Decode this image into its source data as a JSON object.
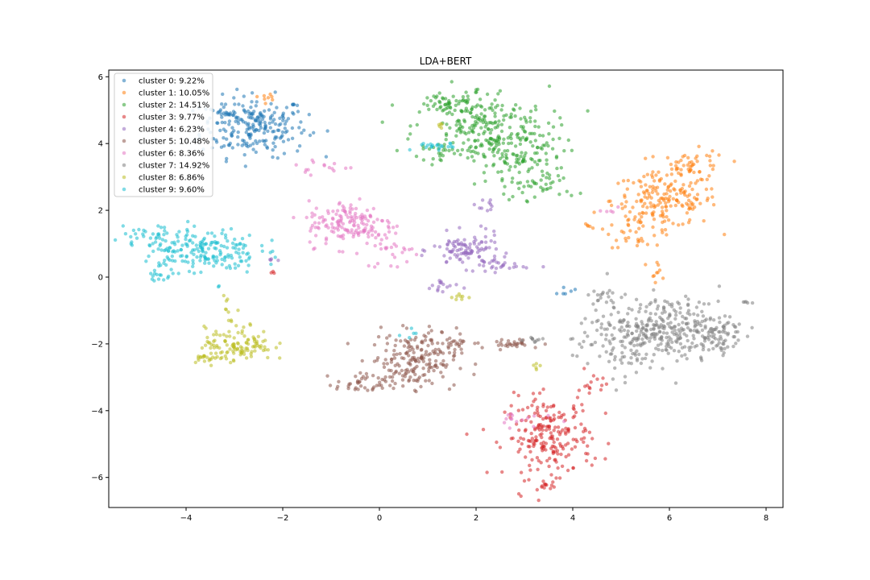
{
  "chart_data": {
    "type": "scatter",
    "title": "LDA+BERT",
    "xlabel": "",
    "ylabel": "",
    "xlim": [
      -5.6,
      8.35
    ],
    "ylim": [
      -6.9,
      6.2
    ],
    "xticks": [
      -4,
      -2,
      0,
      2,
      4,
      6,
      8
    ],
    "xtick_labels": [
      "−4",
      "−2",
      "0",
      "2",
      "4",
      "6",
      "8"
    ],
    "yticks": [
      6,
      4,
      2,
      0,
      -2,
      -4,
      -6
    ],
    "ytick_labels": [
      "6",
      "4",
      "2",
      "0",
      "−2",
      "−4",
      "−6"
    ],
    "grid": false,
    "legend_position": "top-left",
    "point_alpha": 0.55,
    "series": [
      {
        "name": "cluster 0: 9.22%",
        "color": "#1f77b4",
        "clusters": [
          {
            "cx": -2.6,
            "cy": 4.5,
            "sx": 0.55,
            "sy": 0.45,
            "n": 230
          },
          {
            "cx": -3.2,
            "cy": 5.0,
            "sx": 0.1,
            "sy": 0.1,
            "n": 15
          },
          {
            "cx": 3.8,
            "cy": -0.4,
            "sx": 0.15,
            "sy": 0.1,
            "n": 6
          }
        ]
      },
      {
        "name": "cluster 1: 10.05%",
        "color": "#ff7f0e",
        "clusters": [
          {
            "cx": 5.9,
            "cy": 2.3,
            "sx": 0.55,
            "sy": 0.4,
            "n": 170
          },
          {
            "cx": 6.5,
            "cy": 3.3,
            "sx": 0.35,
            "sy": 0.25,
            "n": 50
          },
          {
            "cx": 5.4,
            "cy": 1.5,
            "sx": 0.35,
            "sy": 0.3,
            "n": 40
          },
          {
            "cx": 5.7,
            "cy": 0.2,
            "sx": 0.15,
            "sy": 0.15,
            "n": 10
          },
          {
            "cx": -2.3,
            "cy": 5.4,
            "sx": 0.1,
            "sy": 0.05,
            "n": 8
          },
          {
            "cx": 4.3,
            "cy": 1.55,
            "sx": 0.05,
            "sy": 0.05,
            "n": 5
          }
        ]
      },
      {
        "name": "cluster 2: 14.51%",
        "color": "#2ca02c",
        "clusters": [
          {
            "cx": 2.1,
            "cy": 4.5,
            "sx": 0.7,
            "sy": 0.6,
            "n": 220
          },
          {
            "cx": 2.8,
            "cy": 3.6,
            "sx": 0.5,
            "sy": 0.5,
            "n": 130
          },
          {
            "cx": 1.5,
            "cy": 5.2,
            "sx": 0.3,
            "sy": 0.2,
            "n": 40
          },
          {
            "cx": 3.3,
            "cy": 2.7,
            "sx": 0.4,
            "sy": 0.2,
            "n": 30
          },
          {
            "cx": 1.2,
            "cy": 3.8,
            "sx": 0.15,
            "sy": 0.1,
            "n": 10
          }
        ]
      },
      {
        "name": "cluster 3: 9.77%",
        "color": "#d62728",
        "clusters": [
          {
            "cx": 3.5,
            "cy": -4.8,
            "sx": 0.45,
            "sy": 0.6,
            "n": 220
          },
          {
            "cx": 4.4,
            "cy": -3.3,
            "sx": 0.15,
            "sy": 0.25,
            "n": 15
          },
          {
            "cx": 3.45,
            "cy": -6.25,
            "sx": 0.06,
            "sy": 0.05,
            "n": 8
          },
          {
            "cx": -2.2,
            "cy": 0.1,
            "sx": 0.05,
            "sy": 0.05,
            "n": 3
          }
        ]
      },
      {
        "name": "cluster 4: 6.23%",
        "color": "#9467bd",
        "clusters": [
          {
            "cx": 1.8,
            "cy": 0.8,
            "sx": 0.35,
            "sy": 0.25,
            "n": 100
          },
          {
            "cx": 2.5,
            "cy": 0.35,
            "sx": 0.3,
            "sy": 0.1,
            "n": 25
          },
          {
            "cx": 1.3,
            "cy": -0.3,
            "sx": 0.2,
            "sy": 0.15,
            "n": 15
          },
          {
            "cx": 2.3,
            "cy": 2.2,
            "sx": 0.15,
            "sy": 0.15,
            "n": 10
          },
          {
            "cx": -2.3,
            "cy": 0.5,
            "sx": 0.1,
            "sy": 0.05,
            "n": 4
          }
        ]
      },
      {
        "name": "cluster 5: 10.48%",
        "color": "#8c564b",
        "clusters": [
          {
            "cx": 0.7,
            "cy": -2.5,
            "sx": 0.45,
            "sy": 0.4,
            "n": 180
          },
          {
            "cx": -0.3,
            "cy": -3.2,
            "sx": 0.3,
            "sy": 0.15,
            "n": 40
          },
          {
            "cx": 2.7,
            "cy": -2.0,
            "sx": 0.35,
            "sy": 0.08,
            "n": 30
          },
          {
            "cx": 1.3,
            "cy": -1.9,
            "sx": 0.3,
            "sy": 0.2,
            "n": 30
          }
        ]
      },
      {
        "name": "cluster 6: 8.36%",
        "color": "#e377c2",
        "clusters": [
          {
            "cx": -0.6,
            "cy": 1.6,
            "sx": 0.45,
            "sy": 0.35,
            "n": 160
          },
          {
            "cx": 0.3,
            "cy": 0.8,
            "sx": 0.3,
            "sy": 0.3,
            "n": 25
          },
          {
            "cx": -1.2,
            "cy": 3.3,
            "sx": 0.35,
            "sy": 0.15,
            "n": 15
          },
          {
            "cx": 3.0,
            "cy": -4.2,
            "sx": 0.3,
            "sy": 0.15,
            "n": 15
          },
          {
            "cx": 4.7,
            "cy": 2.0,
            "sx": 0.1,
            "sy": 0.1,
            "n": 5
          }
        ]
      },
      {
        "name": "cluster 7: 14.92%",
        "color": "#7f7f7f",
        "clusters": [
          {
            "cx": 6.0,
            "cy": -1.5,
            "sx": 0.65,
            "sy": 0.45,
            "n": 260
          },
          {
            "cx": 5.0,
            "cy": -1.9,
            "sx": 0.5,
            "sy": 0.5,
            "n": 120
          },
          {
            "cx": 6.9,
            "cy": -1.8,
            "sx": 0.3,
            "sy": 0.3,
            "n": 50
          },
          {
            "cx": 4.6,
            "cy": -0.6,
            "sx": 0.15,
            "sy": 0.1,
            "n": 15
          },
          {
            "cx": 3.2,
            "cy": -1.9,
            "sx": 0.15,
            "sy": 0.05,
            "n": 10
          },
          {
            "cx": 7.6,
            "cy": -0.75,
            "sx": 0.05,
            "sy": 0.03,
            "n": 5
          }
        ]
      },
      {
        "name": "cluster 8: 6.86%",
        "color": "#bcbd22",
        "clusters": [
          {
            "cx": -2.9,
            "cy": -2.0,
            "sx": 0.35,
            "sy": 0.25,
            "n": 110
          },
          {
            "cx": -3.5,
            "cy": -2.4,
            "sx": 0.2,
            "sy": 0.08,
            "n": 25
          },
          {
            "cx": -3.1,
            "cy": -1.0,
            "sx": 0.1,
            "sy": 0.25,
            "n": 10
          },
          {
            "cx": 1.65,
            "cy": -0.6,
            "sx": 0.08,
            "sy": 0.05,
            "n": 8
          },
          {
            "cx": 1.3,
            "cy": 4.6,
            "sx": 0.05,
            "sy": 0.1,
            "n": 5
          },
          {
            "cx": 3.3,
            "cy": -2.7,
            "sx": 0.1,
            "sy": 0.05,
            "n": 5
          }
        ]
      },
      {
        "name": "cluster 9: 9.60%",
        "color": "#17becf",
        "clusters": [
          {
            "cx": -3.7,
            "cy": 0.8,
            "sx": 0.6,
            "sy": 0.35,
            "n": 200
          },
          {
            "cx": -4.7,
            "cy": 1.2,
            "sx": 0.3,
            "sy": 0.15,
            "n": 30
          },
          {
            "cx": 1.2,
            "cy": 3.9,
            "sx": 0.2,
            "sy": 0.1,
            "n": 20
          },
          {
            "cx": -4.6,
            "cy": 0.0,
            "sx": 0.1,
            "sy": 0.1,
            "n": 10
          },
          {
            "cx": 0.6,
            "cy": -1.7,
            "sx": 0.1,
            "sy": 0.1,
            "n": 5
          }
        ]
      }
    ]
  }
}
